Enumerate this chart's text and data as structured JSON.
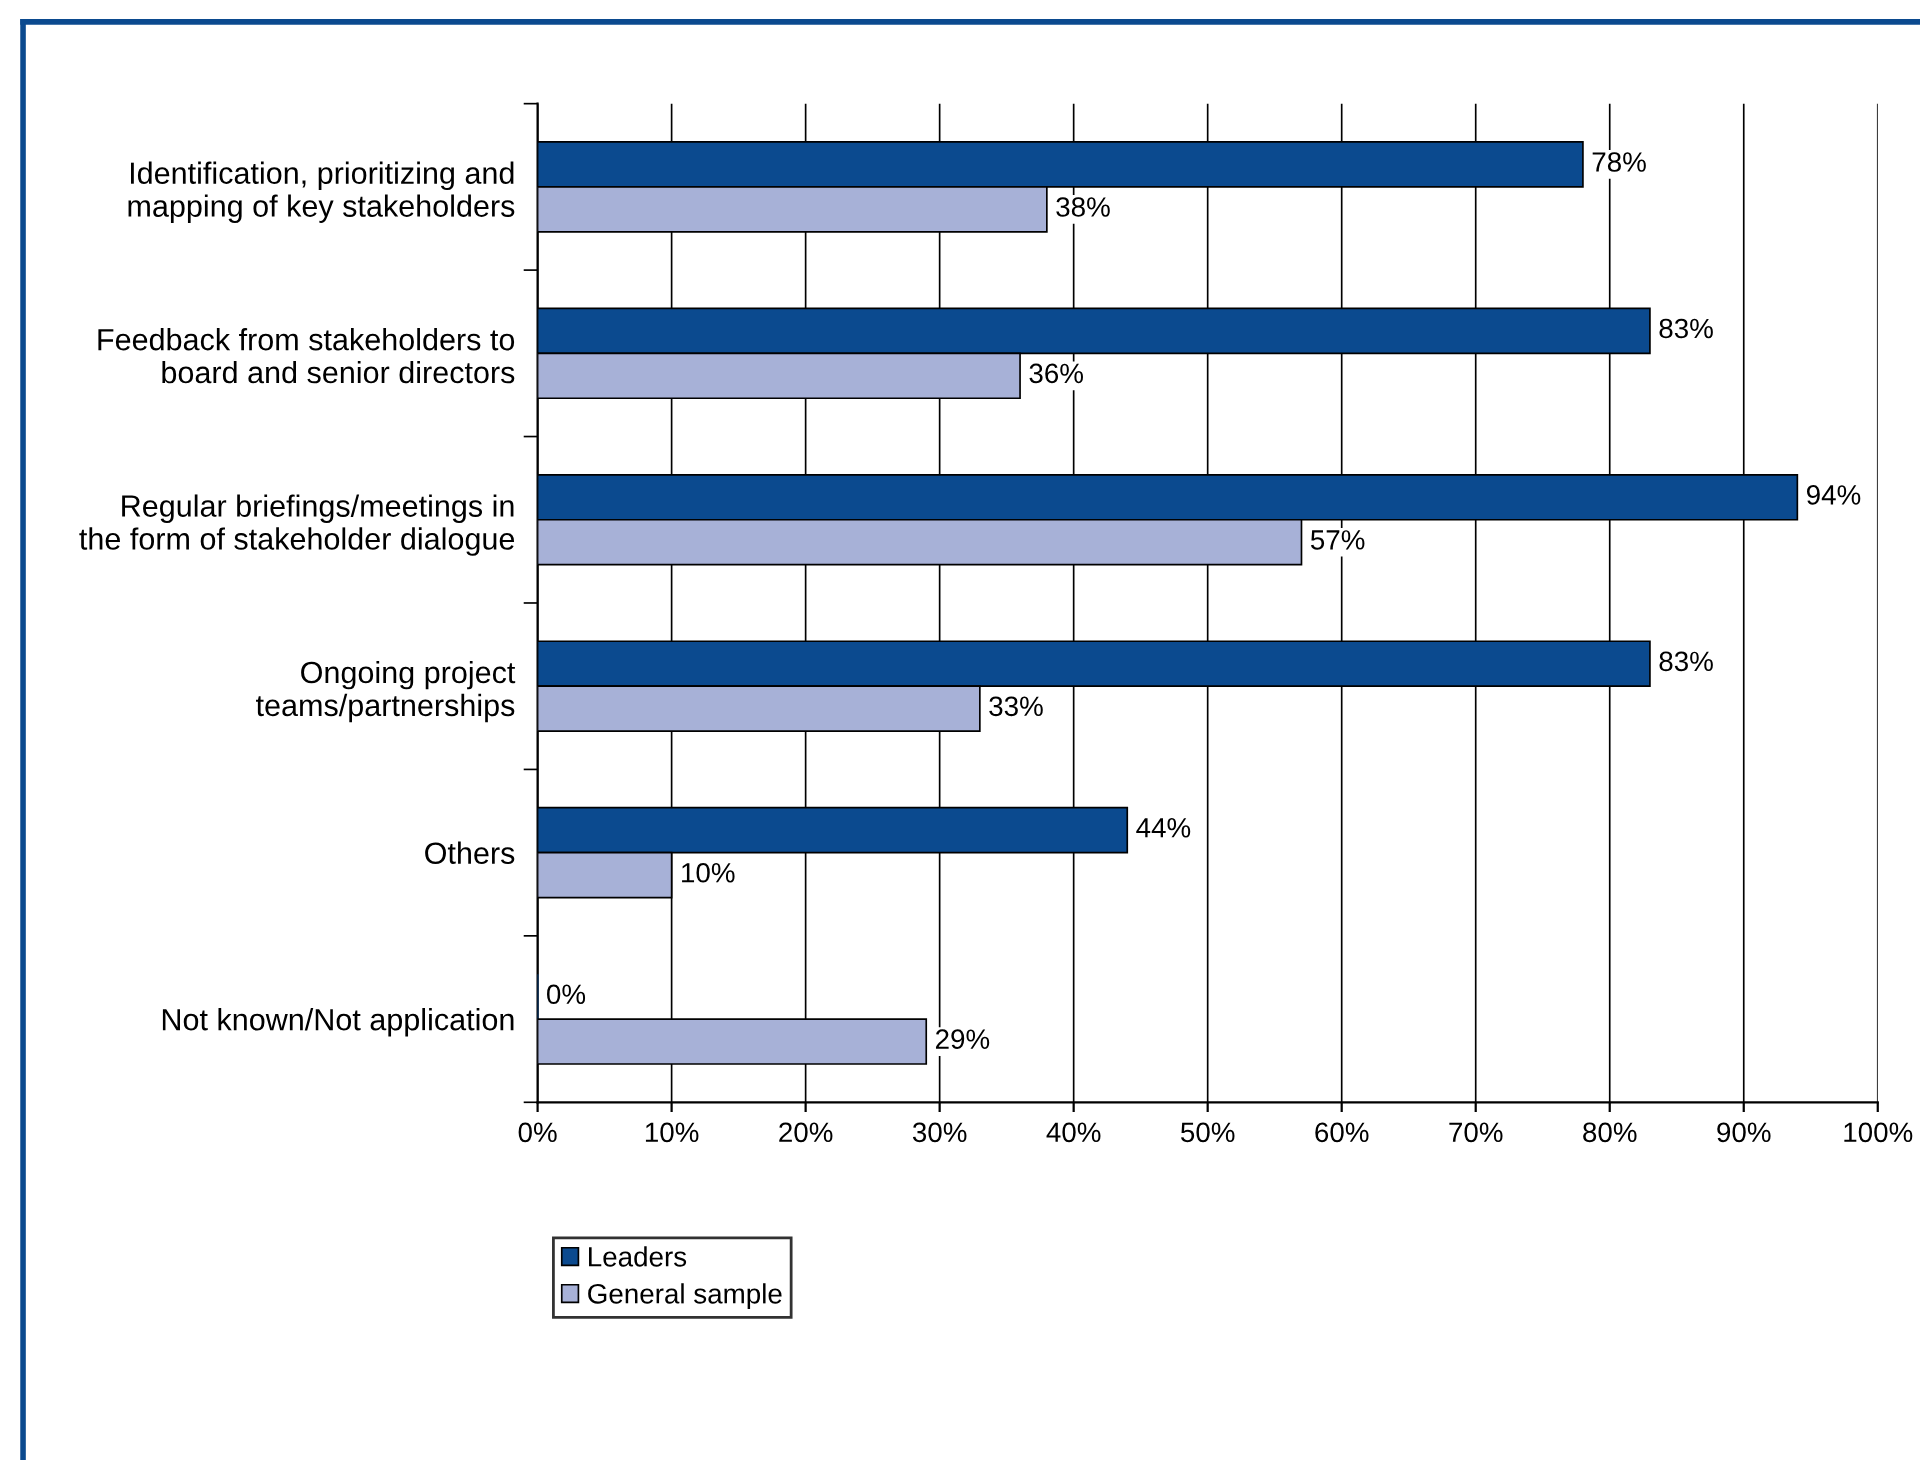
{
  "chart_data": {
    "type": "bar",
    "orientation": "horizontal",
    "categories": [
      "Identification, prioritizing and\nmapping of key stakeholders",
      "Feedback from stakeholders to\nboard and senior directors",
      "Regular briefings/meetings in\nthe form of stakeholder dialogue",
      "Ongoing project\nteams/partnerships",
      "Others",
      "Not known/Not application"
    ],
    "series": [
      {
        "name": "Leaders",
        "color": "#0b4a8f",
        "values": [
          78,
          83,
          94,
          83,
          44,
          0
        ],
        "value_labels": [
          "78%",
          "83%",
          "94%",
          "83%",
          "44%",
          "0%"
        ]
      },
      {
        "name": "General sample",
        "color": "#a7b1d7",
        "values": [
          38,
          36,
          57,
          33,
          10,
          29
        ],
        "value_labels": [
          "38%",
          "36%",
          "57%",
          "33%",
          "10%",
          "29%"
        ]
      }
    ],
    "xlim": [
      0,
      100
    ],
    "xticks": [
      {
        "value": 0,
        "label": "0%"
      },
      {
        "value": 10,
        "label": "10%"
      },
      {
        "value": 20,
        "label": "20%"
      },
      {
        "value": 30,
        "label": "30%"
      },
      {
        "value": 40,
        "label": "40%"
      },
      {
        "value": 50,
        "label": "50%"
      },
      {
        "value": 60,
        "label": "60%"
      },
      {
        "value": 70,
        "label": "70%"
      },
      {
        "value": 80,
        "label": "80%"
      },
      {
        "value": 90,
        "label": "90%"
      },
      {
        "value": 100,
        "label": "100%"
      }
    ],
    "grid": "x",
    "legend": "bottom"
  }
}
